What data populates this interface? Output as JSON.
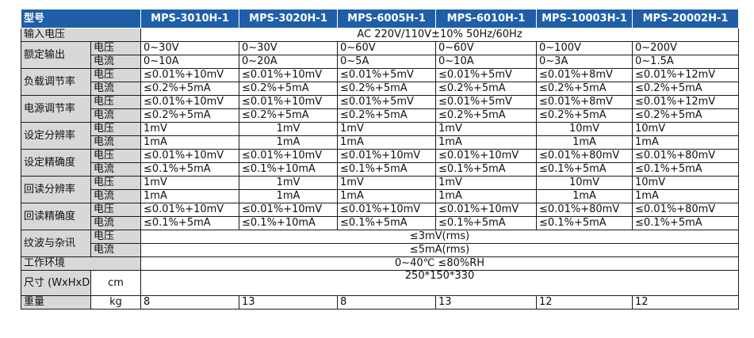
{
  "header": {
    "param": "型号",
    "models": [
      "MPS-3010H-1",
      "MPS-3020H-1",
      "MPS-6005H-1",
      "MPS-6010H-1",
      "MPS-10003H-1",
      "MPS-20002H-1"
    ]
  },
  "input_voltage": {
    "label": "输入电压",
    "value": "AC 220V/110V±10% 50Hz/60Hz"
  },
  "rated_output": {
    "label": "额定输出",
    "voltage_label": "电压",
    "voltage": [
      "0~30V",
      "0~30V",
      "0~60V",
      "0~60V",
      "0~100V",
      "0~200V"
    ],
    "current_label": "电流",
    "current": [
      "0~10A",
      "0~20A",
      "0~5A",
      "0~10A",
      "0~3A",
      "0~1.5A"
    ]
  },
  "load_regulation": {
    "label": "负载调节率",
    "voltage_label": "电压",
    "voltage": [
      "≤0.01%+10mV",
      "≤0.01%+10mV",
      "≤0.01%+5mV",
      "≤0.01%+5mV",
      "≤0.01%+8mV",
      "≤0.01%+12mV"
    ],
    "current_label": "电流",
    "current": [
      "≤0.2%+5mA",
      "≤0.2%+5mA",
      "≤0.2%+5mA",
      "≤0.2%+5mA",
      "≤0.2%+5mA",
      "≤0.2%+5mA"
    ]
  },
  "line_regulation": {
    "label": "电源调节率",
    "voltage_label": "电压",
    "voltage": [
      "≤0.01%+10mV",
      "≤0.01%+10mV",
      "≤0.01%+5mV",
      "≤0.01%+5mV",
      "≤0.01%+8mV",
      "≤0.01%+12mV"
    ],
    "current_label": "电流",
    "current": [
      "≤0.2%+5mA",
      "≤0.2%+5mA",
      "≤0.2%+5mA",
      "≤0.2%+5mA",
      "≤0.2%+5mA",
      "≤0.2%+5mA"
    ]
  },
  "set_resolution": {
    "label": "设定分辨率",
    "voltage_label": "电压",
    "voltage": [
      "1mV",
      "1mV",
      "1mV",
      "1mV",
      "10mV",
      "10mV"
    ],
    "current_label": "电流",
    "current": [
      "1mA",
      "1mA",
      "1mA",
      "1mA",
      "1mA",
      "1mA"
    ]
  },
  "set_accuracy": {
    "label": "设定精确度",
    "voltage_label": "电压",
    "voltage": [
      "≤0.01%+10mV",
      "≤0.01%+10mV",
      "≤0.01%+10mV",
      "≤0.01%+10mV",
      "≤0.01%+80mV",
      "≤0.01%+80mV"
    ],
    "current_label": "电流",
    "current": [
      "≤0.1%+5mA",
      "≤0.1%+10mA",
      "≤0.1%+5mA",
      "≤0.1%+5mA",
      "≤0.1%+5mA",
      "≤0.1%+5mA"
    ]
  },
  "readback_resolution": {
    "label": "回读分辨率",
    "voltage_label": "电压",
    "voltage": [
      "1mV",
      "1mV",
      "1mV",
      "1mV",
      "10mV",
      "10mV"
    ],
    "current_label": "电流",
    "current": [
      "1mA",
      "1mA",
      "1mA",
      "1mA",
      "1mA",
      "1mA"
    ]
  },
  "readback_accuracy": {
    "label": "回读精确度",
    "voltage_label": "电压",
    "voltage": [
      "≤0.01%+10mV",
      "≤0.01%+10mV",
      "≤0.01%+10mV",
      "≤0.01%+10mV",
      "≤0.01%+80mV",
      "≤0.01%+80mV"
    ],
    "current_label": "电流",
    "current": [
      "≤0.1%+5mA",
      "≤0.1%+10mA",
      "≤0.1%+5mA",
      "≤0.1%+5mA",
      "≤0.1%+5mA",
      "≤0.1%+5mA"
    ]
  },
  "ripple_noise": {
    "label": "纹波与杂讯",
    "voltage_label": "电压",
    "voltage": "≤3mV(rms)",
    "current_label": "电流",
    "current": "≤5mA(rms)"
  },
  "environment": {
    "label": "工作环境",
    "value": "0~40℃ ≤80%RH"
  },
  "size": {
    "label": "尺寸 (WxHxD)",
    "unit": "cm",
    "value": "250*150*330"
  },
  "weight": {
    "label": "重量",
    "unit": "kg",
    "values": [
      "8",
      "13",
      "8",
      "13",
      "12",
      "12"
    ]
  }
}
